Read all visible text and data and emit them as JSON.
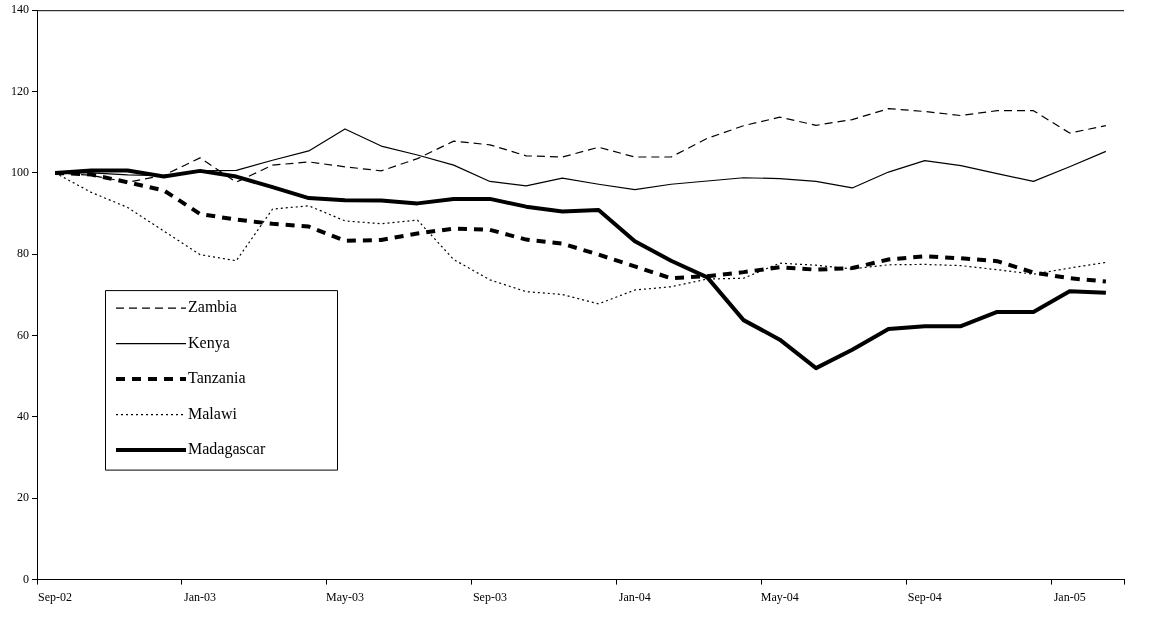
{
  "chart_data": {
    "type": "line",
    "categories": [
      "Sep-02",
      null,
      null,
      null,
      "Jan-03",
      null,
      null,
      null,
      "May-03",
      null,
      null,
      null,
      "Sep-03",
      null,
      null,
      null,
      "Jan-04",
      null,
      null,
      null,
      "May-04",
      null,
      null,
      null,
      "Sep-04",
      null,
      null,
      null,
      "Jan-05",
      null
    ],
    "series": [
      {
        "name": "Zambia",
        "color": "#000000",
        "line_style": "dashed",
        "values": [
          100,
          99.4,
          97.7,
          99.4,
          103.7,
          97.7,
          101.9,
          102.7,
          101.5,
          100.5,
          103.5,
          107.8,
          106.9,
          104.2,
          103.9,
          106.3,
          103.9,
          103.9,
          108.5,
          111.6,
          113.7,
          111.7,
          113.1,
          115.8,
          115.1,
          114.1,
          115.3,
          115.3,
          109.8,
          111.6
        ]
      },
      {
        "name": "Kenya",
        "color": "#000000",
        "line_style": "solid",
        "values": [
          100,
          100,
          99.5,
          99.3,
          100.5,
          100.6,
          103.1,
          105.4,
          110.8,
          106.6,
          104.4,
          101.9,
          97.9,
          96.8,
          98.7,
          97.2,
          95.9,
          97.2,
          98,
          98.8,
          98.6,
          97.9,
          96.3,
          100.2,
          103,
          101.8,
          99.8,
          97.9,
          101.5,
          105.3
        ]
      },
      {
        "name": "Tanzania",
        "color": "#000000",
        "line_style": "dashed",
        "values": [
          100,
          99.6,
          97.7,
          95.7,
          89.9,
          88.5,
          87.5,
          86.8,
          83.3,
          83.5,
          85.1,
          86.3,
          86,
          83.6,
          82.6,
          79.9,
          77,
          74.1,
          74.6,
          75.6,
          76.8,
          76.2,
          76.6,
          78.7,
          79.5,
          79,
          78.3,
          75.5,
          74.1,
          73.3
        ]
      },
      {
        "name": "Malawi",
        "color": "#000000",
        "line_style": "dotted",
        "values": [
          100,
          95.2,
          91.5,
          85.7,
          79.9,
          78.4,
          91.1,
          91.9,
          88.2,
          87.5,
          88.4,
          78.7,
          73.7,
          70.8,
          70.1,
          67.8,
          71.2,
          72,
          73.9,
          74.1,
          77.8,
          77.3,
          76.4,
          77.4,
          77.5,
          77.2,
          76.2,
          75.1,
          76.6,
          78
        ]
      },
      {
        "name": "Madagascar",
        "color": "#000000",
        "line_style": "solid",
        "values": [
          100,
          100.6,
          100.6,
          99.1,
          100.5,
          99.1,
          96.5,
          93.8,
          93.3,
          93.2,
          92.5,
          93.6,
          93.6,
          91.7,
          90.5,
          90.9,
          83.2,
          78.4,
          74.3,
          63.8,
          59,
          52,
          56.5,
          61.6,
          62.3,
          62.3,
          65.8,
          65.8,
          70.9,
          70.5
        ]
      }
    ],
    "ylim": [
      0,
      140
    ],
    "yticks": [
      0,
      20,
      40,
      60,
      80,
      100,
      120,
      140
    ],
    "grid": false,
    "legend": "bottom left",
    "marker": "none"
  }
}
